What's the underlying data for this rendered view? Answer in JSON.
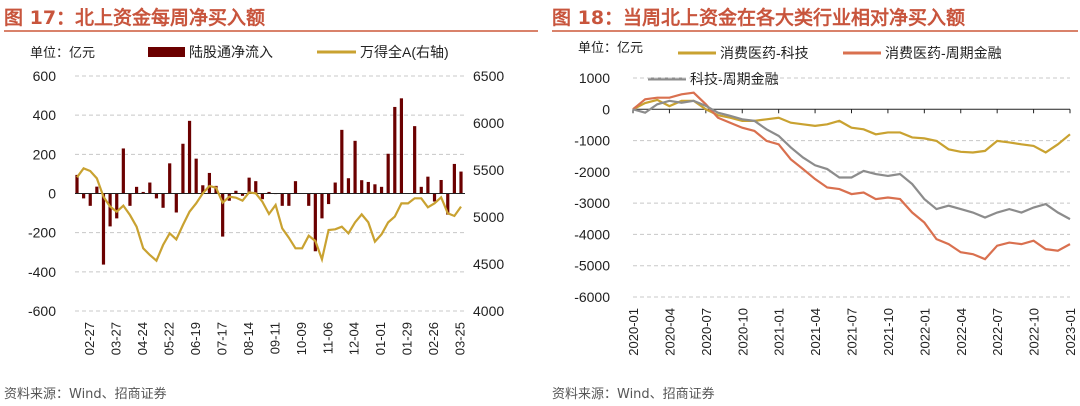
{
  "colors": {
    "title": "#c8553d",
    "bar": "#6b0000",
    "wind_a": "#c9a231",
    "med_tech": "#c9a231",
    "med_fin": "#d9704f",
    "tech_fin": "#8c8c8c"
  },
  "left": {
    "title": "图 17：北上资金每周净买入额",
    "source": "资料来源：Wind、招商证券",
    "chart_data": {
      "type": "bar+line",
      "unit_label": "单位：亿元",
      "left_ylim": [
        -600,
        600
      ],
      "left_yticks": [
        "600",
        "400",
        "200",
        "0",
        "-200",
        "-400",
        "-600"
      ],
      "right_ylim": [
        4000,
        6500
      ],
      "right_yticks": [
        "6500",
        "6000",
        "5500",
        "5000",
        "4500",
        "4000"
      ],
      "xticks": [
        "02-27",
        "03-27",
        "04-24",
        "05-22",
        "06-19",
        "07-17",
        "08-14",
        "09-11",
        "10-09",
        "11-06",
        "12-04",
        "01-01",
        "01-29",
        "02-26",
        "03-25"
      ],
      "grid": true,
      "legend_placement": "top",
      "series": [
        {
          "name": "陆股通净流入",
          "type": "bar",
          "axis": "left",
          "values": [
            95,
            -25,
            -63,
            35,
            -363,
            -168,
            -127,
            230,
            -63,
            34,
            8,
            56,
            -25,
            -73,
            154,
            -97,
            254,
            371,
            178,
            42,
            105,
            39,
            -220,
            -37,
            14,
            -12,
            81,
            63,
            -29,
            8,
            -3,
            -63,
            -63,
            63,
            0,
            -63,
            -295,
            -127,
            -54,
            56,
            325,
            78,
            269,
            68,
            59,
            47,
            34,
            203,
            442,
            486,
            0,
            344,
            34,
            86,
            -41,
            69,
            -108,
            151,
            112
          ]
        },
        {
          "name": "万得全A(右轴)",
          "type": "line",
          "axis": "right",
          "values": [
            5422,
            5518,
            5489,
            5411,
            5216,
            5110,
            5057,
            5121,
            5021,
            4897,
            4667,
            4596,
            4535,
            4702,
            4826,
            4762,
            4915,
            5057,
            5145,
            5252,
            5330,
            5312,
            5152,
            5216,
            5206,
            5174,
            5262,
            5252,
            5163,
            5032,
            5128,
            4879,
            4780,
            4667,
            4667,
            4801,
            4745,
            4550,
            4862,
            4869,
            4897,
            4826,
            4943,
            5028,
            4943,
            4738,
            4816,
            4943,
            5004,
            5145,
            5145,
            5199,
            5199,
            5103,
            5145,
            5209,
            5039,
            5011,
            5110
          ]
        }
      ]
    }
  },
  "right": {
    "title": "图 18：当周北上资金在各大类行业相对净买入额",
    "source": "资料来源：Wind、招商证券",
    "chart_data": {
      "type": "line",
      "unit_label": "单位：亿元",
      "ylim": [
        -6000,
        1000
      ],
      "yticks": [
        "1000",
        "0",
        "-1000",
        "-2000",
        "-3000",
        "-4000",
        "-5000",
        "-6000"
      ],
      "xticks": [
        "2020-01",
        "2020-04",
        "2020-07",
        "2020-10",
        "2021-01",
        "2021-04",
        "2021-07",
        "2021-10",
        "2022-01",
        "2022-04",
        "2022-07",
        "2022-10",
        "2023-01"
      ],
      "grid": true,
      "legend_placement": "top",
      "series": [
        {
          "name": "消费医药-科技",
          "values": [
            0,
            200,
            300,
            100,
            270,
            270,
            0,
            -190,
            -270,
            -370,
            -370,
            -320,
            -270,
            -430,
            -480,
            -530,
            -480,
            -370,
            -590,
            -640,
            -800,
            -740,
            -740,
            -900,
            -930,
            -1010,
            -1280,
            -1360,
            -1380,
            -1330,
            -1010,
            -1060,
            -1120,
            -1170,
            -1380,
            -1120,
            -800
          ]
        },
        {
          "name": "消费医药-周期金融",
          "values": [
            0,
            320,
            370,
            370,
            480,
            530,
            160,
            -270,
            -430,
            -590,
            -690,
            -1010,
            -1120,
            -1600,
            -1910,
            -2230,
            -2500,
            -2550,
            -2710,
            -2660,
            -2870,
            -2820,
            -2870,
            -3300,
            -3620,
            -4150,
            -4310,
            -4570,
            -4630,
            -4790,
            -4360,
            -4260,
            -4310,
            -4200,
            -4470,
            -4520,
            -4310
          ]
        },
        {
          "name": "科技-周期金融",
          "values": [
            0,
            -110,
            160,
            270,
            210,
            270,
            110,
            -110,
            -210,
            -320,
            -370,
            -640,
            -850,
            -1220,
            -1540,
            -1790,
            -1910,
            -2180,
            -2180,
            -1970,
            -2070,
            -2130,
            -2070,
            -2390,
            -2870,
            -3190,
            -3080,
            -3190,
            -3300,
            -3460,
            -3300,
            -3190,
            -3300,
            -3140,
            -3030,
            -3300,
            -3510
          ]
        }
      ]
    }
  }
}
